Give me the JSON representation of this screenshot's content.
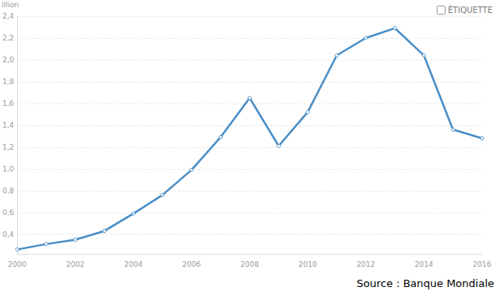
{
  "chart_data": {
    "type": "line",
    "y_label": "illion",
    "annotations": [
      "ÉTIQUETTE",
      "Source : Banque Mondiale"
    ],
    "x": [
      2000,
      2001,
      2002,
      2003,
      2004,
      2005,
      2006,
      2007,
      2008,
      2009,
      2010,
      2011,
      2012,
      2013,
      2014,
      2015,
      2016
    ],
    "values": [
      0.26,
      0.31,
      0.35,
      0.43,
      0.59,
      0.76,
      0.99,
      1.29,
      1.65,
      1.21,
      1.52,
      2.04,
      2.2,
      2.29,
      2.04,
      1.36,
      1.28
    ],
    "color": "#4a8ec6",
    "marker": "circle",
    "xlim": [
      2000,
      2016
    ],
    "xticks": [
      2000,
      2002,
      2004,
      2006,
      2008,
      2010,
      2012,
      2014,
      2016
    ],
    "ylim": [
      0.22,
      2.4
    ],
    "yticks": [
      {
        "value": 0.4,
        "label": "0,4"
      },
      {
        "value": 0.6,
        "label": "0,6"
      },
      {
        "value": 0.8,
        "label": "0,8"
      },
      {
        "value": 1.0,
        "label": "1,0"
      },
      {
        "value": 1.2,
        "label": "1,2"
      },
      {
        "value": 1.4,
        "label": "1,4"
      },
      {
        "value": 1.6,
        "label": "1,6"
      },
      {
        "value": 1.8,
        "label": "1,8"
      },
      {
        "value": 2.0,
        "label": "2,0"
      },
      {
        "value": 2.2,
        "label": "2,2"
      },
      {
        "value": 2.4,
        "label": "2,4"
      }
    ],
    "grid": true
  }
}
